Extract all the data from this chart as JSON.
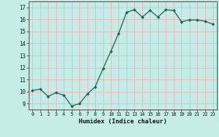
{
  "x": [
    0,
    1,
    2,
    3,
    4,
    5,
    6,
    7,
    8,
    9,
    10,
    11,
    12,
    13,
    14,
    15,
    16,
    17,
    18,
    19,
    20,
    21,
    22,
    23
  ],
  "y": [
    10.1,
    10.2,
    9.6,
    9.9,
    9.7,
    8.8,
    9.0,
    9.8,
    10.4,
    11.9,
    13.35,
    14.85,
    16.6,
    16.8,
    16.2,
    16.75,
    16.2,
    16.8,
    16.75,
    15.8,
    15.95,
    15.95,
    15.85,
    15.6
  ],
  "line_color": "#1a6b5a",
  "marker_color": "#1a6b5a",
  "bg_color": "#c5ece6",
  "grid_color": "#e8b8b8",
  "xlabel": "Humidex (Indice chaleur)",
  "ylim": [
    8.5,
    17.5
  ],
  "xlim": [
    -0.5,
    23.5
  ],
  "yticks": [
    9,
    10,
    11,
    12,
    13,
    14,
    15,
    16,
    17
  ],
  "xticks": [
    0,
    1,
    2,
    3,
    4,
    5,
    6,
    7,
    8,
    9,
    10,
    11,
    12,
    13,
    14,
    15,
    16,
    17,
    18,
    19,
    20,
    21,
    22,
    23
  ]
}
